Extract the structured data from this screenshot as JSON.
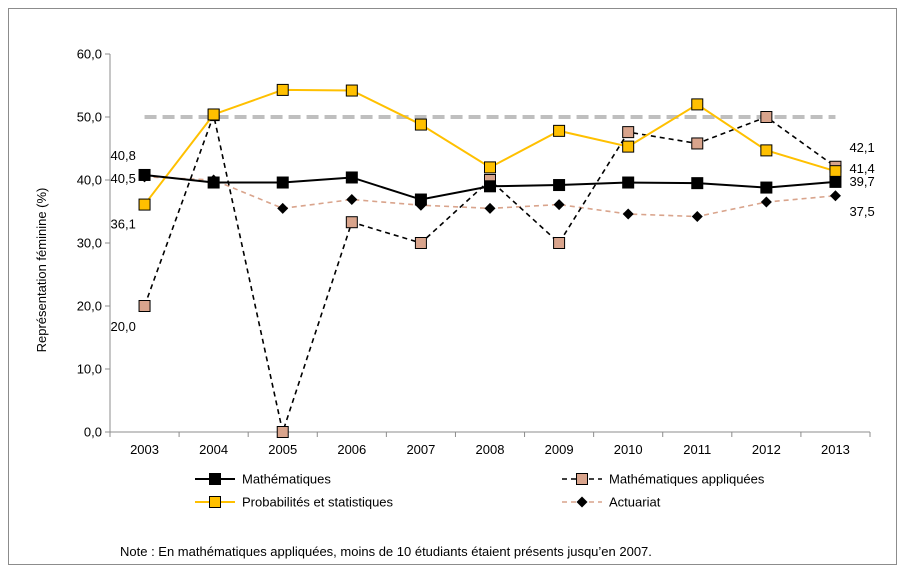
{
  "chart_data": {
    "type": "line",
    "ylabel": "Représentation féminine (%)",
    "ylim": [
      0,
      60
    ],
    "yticks": [
      "0,0",
      "10,0",
      "20,0",
      "30,0",
      "40,0",
      "50,0",
      "60,0"
    ],
    "categories": [
      "2003",
      "2004",
      "2005",
      "2006",
      "2007",
      "2008",
      "2009",
      "2010",
      "2011",
      "2012",
      "2013"
    ],
    "reference_line": {
      "value": 50,
      "color": "#bfbfbf",
      "style": "dashed"
    },
    "legend_position": "bottom",
    "grid": false,
    "series": [
      {
        "name": "Mathématiques",
        "color": "#000000",
        "marker_color": "#000000",
        "line_style": "solid",
        "marker": "square",
        "values": [
          40.8,
          39.6,
          39.6,
          40.4,
          36.9,
          39.0,
          39.2,
          39.6,
          39.5,
          38.8,
          39.7
        ]
      },
      {
        "name": "Mathématiques appliquées",
        "color": "#000000",
        "marker_color": "#d9a48c",
        "line_style": "dashed",
        "marker": "square",
        "values": [
          20.0,
          50.3,
          0.0,
          33.3,
          30.0,
          40.0,
          30.0,
          47.6,
          45.8,
          50.0,
          42.1
        ]
      },
      {
        "name": "Probabilités et statistiques",
        "color": "#ffc000",
        "marker_color": "#ffc000",
        "line_style": "solid",
        "marker": "square",
        "values": [
          36.1,
          50.4,
          54.3,
          54.2,
          48.8,
          42.0,
          47.8,
          45.3,
          52.0,
          44.7,
          41.4
        ]
      },
      {
        "name": "Actuariat",
        "color": "#d9a48c",
        "marker_color": "#000000",
        "line_style": "dashed",
        "marker": "diamond",
        "values": [
          40.5,
          40.0,
          35.5,
          36.9,
          36.0,
          35.5,
          36.1,
          34.6,
          34.2,
          36.5,
          37.5
        ]
      }
    ],
    "data_labels": [
      {
        "text": "40,8",
        "series": 0,
        "index": 0
      },
      {
        "text": "40,5",
        "series": 3,
        "index": 0
      },
      {
        "text": "36,1",
        "series": 2,
        "index": 0
      },
      {
        "text": "20,0",
        "series": 1,
        "index": 0
      },
      {
        "text": "42,1",
        "series": 1,
        "index": 10
      },
      {
        "text": "41,4",
        "series": 2,
        "index": 10
      },
      {
        "text": "39,7",
        "series": 0,
        "index": 10
      },
      {
        "text": "37,5",
        "series": 3,
        "index": 10
      }
    ],
    "note": "Note : En mathématiques appliquées, moins de 10 étudiants étaient présents jusqu’en 2007."
  }
}
